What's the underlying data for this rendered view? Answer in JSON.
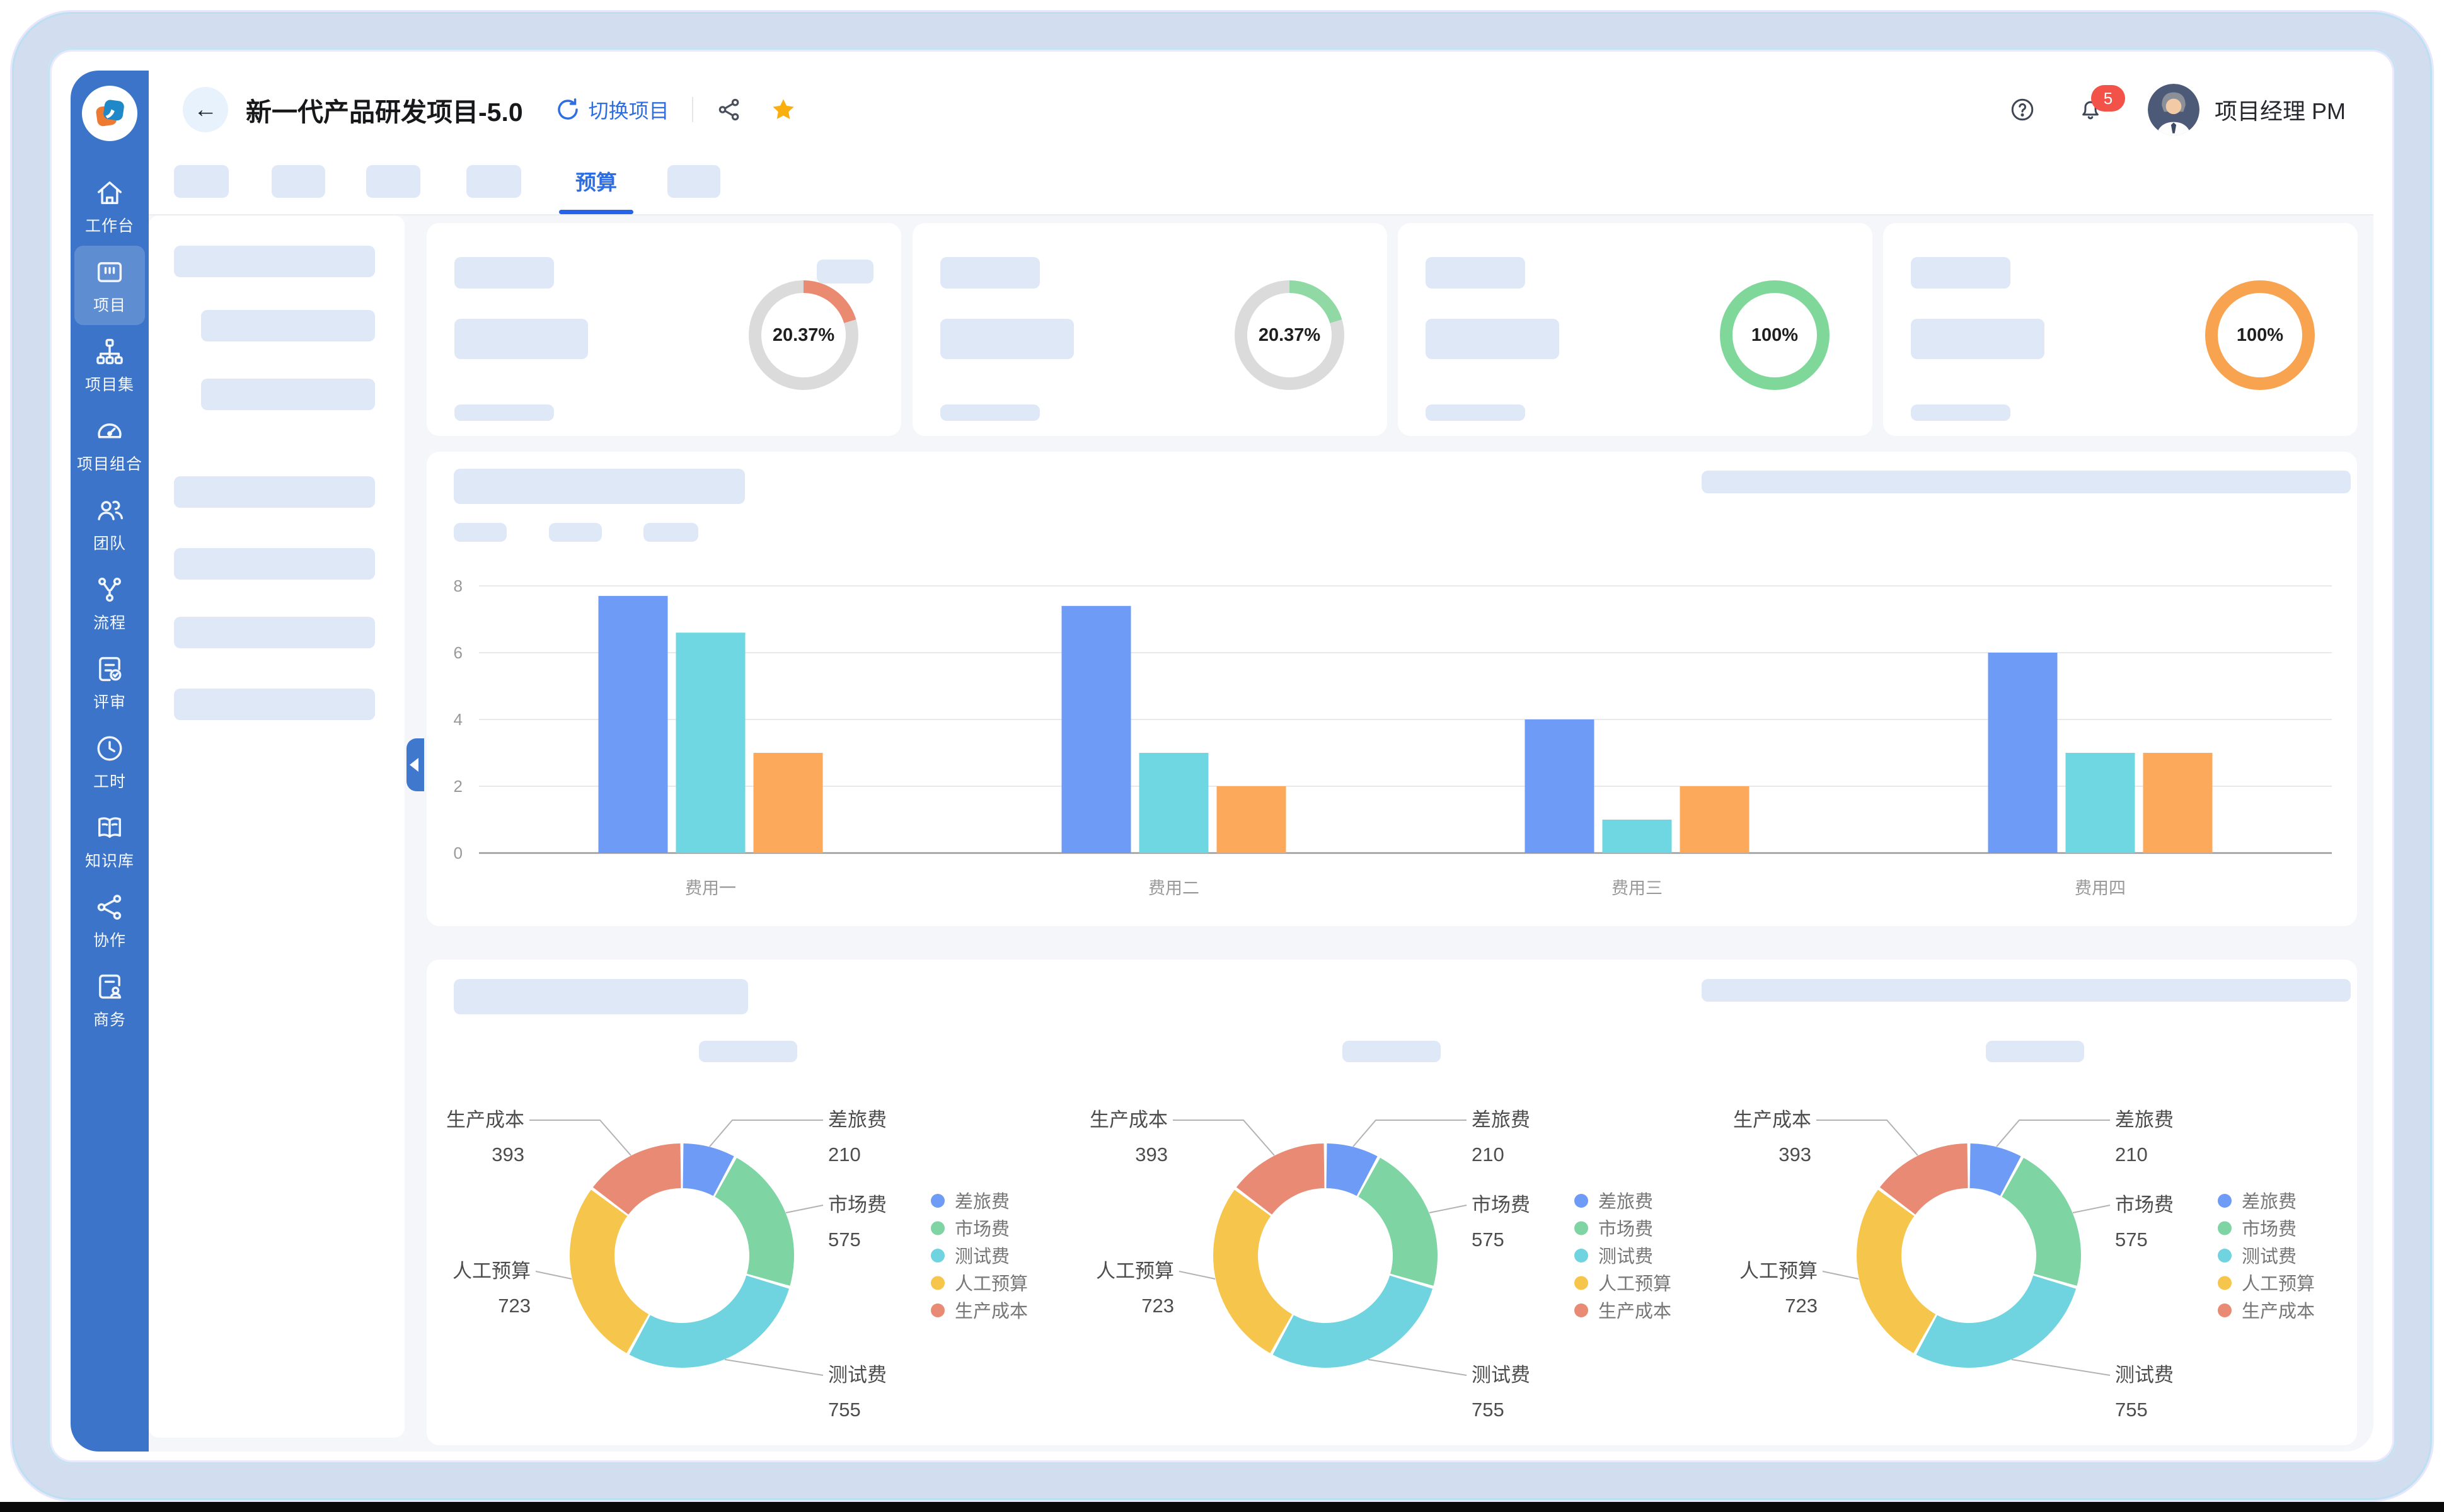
{
  "app": {
    "header": {
      "back_icon": "←",
      "title": "新一代产品研发项目-5.0",
      "refresh_icon": "refresh",
      "switch_project_label": "切换项目",
      "share_icon": "share-nodes",
      "favorite_icon": "star-filled",
      "help_icon": "question-circle",
      "notification_icon": "bell",
      "notification_badge": "5",
      "user": "项目经理 PM"
    },
    "sidebar": {
      "items": [
        {
          "label": "工作台",
          "icon": "workbench-home-icon",
          "active": false
        },
        {
          "label": "项目",
          "icon": "project-kanban-icon",
          "active": true
        },
        {
          "label": "项目集",
          "icon": "program-sitemap-icon",
          "active": false
        },
        {
          "label": "项目组合",
          "icon": "portfolio-gauge-icon",
          "active": false
        },
        {
          "label": "团队",
          "icon": "team-icon",
          "active": false
        },
        {
          "label": "流程",
          "icon": "workflow-icon",
          "active": false
        },
        {
          "label": "评审",
          "icon": "review-icon",
          "active": false
        },
        {
          "label": "工时",
          "icon": "timesheet-clock-icon",
          "active": false
        },
        {
          "label": "知识库",
          "icon": "knowledge-book-icon",
          "active": false
        },
        {
          "label": "协作",
          "icon": "collaboration-share-icon",
          "active": false
        },
        {
          "label": "商务",
          "icon": "business-doc-icon",
          "active": false
        }
      ]
    },
    "tabbar": {
      "active_tab": "预算"
    },
    "kpi_cards": [
      {
        "value_label": "20.37%",
        "percent": 20.37,
        "arc_color": "#ea8a70",
        "track_color": "#dbdbdb"
      },
      {
        "value_label": "20.37%",
        "percent": 20.37,
        "arc_color": "#90d9a4",
        "track_color": "#dbdbdb"
      },
      {
        "value_label": "100%",
        "percent": 100,
        "arc_color": "#7fd89a",
        "track_color": "#dbdbdb"
      },
      {
        "value_label": "100%",
        "percent": 100,
        "arc_color": "#f7a350",
        "track_color": "#dbdbdb"
      }
    ],
    "colors": {
      "sidebar": "#3b74c9",
      "accent_blue": "#2e6ee5",
      "placeholder": "#dfe8f7",
      "content_bg": "#f4f6f9",
      "badge_red": "#f25248",
      "star_gold": "#f9b00f"
    }
  },
  "chart_data": [
    {
      "type": "bar",
      "title": "",
      "categories": [
        "费用一",
        "费用二",
        "费用三",
        "费用四"
      ],
      "series": [
        {
          "name": "series_blue",
          "color": "#6d9bf5",
          "values": [
            7.7,
            7.4,
            4,
            6
          ]
        },
        {
          "name": "series_cyan",
          "color": "#6ed7e2",
          "values": [
            6.6,
            3,
            1,
            3
          ]
        },
        {
          "name": "series_orange",
          "color": "#fca95c",
          "values": [
            3,
            2,
            2,
            3
          ]
        }
      ],
      "xlabel": "",
      "ylabel": "",
      "ylim": [
        0,
        8
      ],
      "yticks": [
        0,
        2,
        4,
        6,
        8
      ],
      "grid": true,
      "legend": false
    },
    {
      "type": "pie",
      "subtype": "donut",
      "title": "",
      "labels": [
        "差旅费",
        "市场费",
        "测试费",
        "人工预算",
        "生产成本"
      ],
      "values": [
        210,
        575,
        755,
        723,
        393
      ],
      "colors": [
        "#6d9bf5",
        "#7fd4a4",
        "#6fd4df",
        "#f6c54b",
        "#e98b74"
      ],
      "legend_position": "right",
      "instances": 3
    }
  ]
}
